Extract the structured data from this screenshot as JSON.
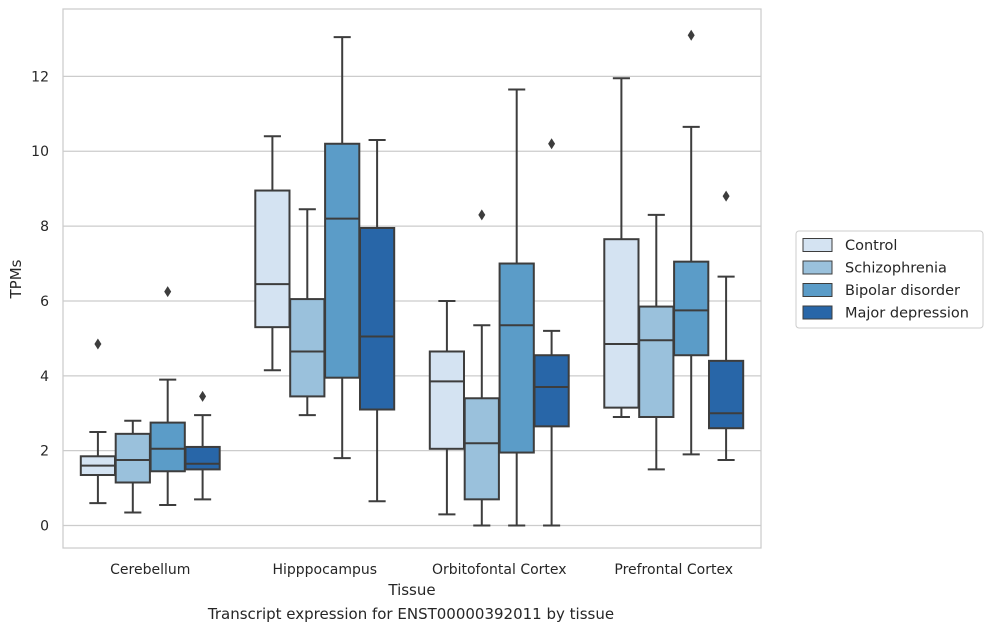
{
  "caption": "Transcript expression for ENST00000392011 by tissue",
  "chart_data": {
    "type": "box",
    "xlabel": "Tissue",
    "ylabel": "TPMs",
    "ylim": [
      -0.6,
      13.8
    ],
    "yticks": [
      0,
      2,
      4,
      6,
      8,
      10,
      12
    ],
    "grid": "horizontal",
    "legend_position": "right",
    "categories": [
      "Cerebellum",
      "Hipppocampus",
      "Orbitofontal Cortex",
      "Prefrontal Cortex"
    ],
    "series": [
      {
        "name": "Control",
        "color": "#d4e3f2",
        "boxes": [
          {
            "whisker_low": 0.6,
            "q1": 1.35,
            "median": 1.6,
            "q3": 1.85,
            "whisker_high": 2.5,
            "outliers": [
              4.85
            ]
          },
          {
            "whisker_low": 4.15,
            "q1": 5.3,
            "median": 6.45,
            "q3": 8.95,
            "whisker_high": 10.4,
            "outliers": []
          },
          {
            "whisker_low": 0.3,
            "q1": 2.05,
            "median": 3.85,
            "q3": 4.65,
            "whisker_high": 6.0,
            "outliers": []
          },
          {
            "whisker_low": 2.9,
            "q1": 3.15,
            "median": 4.85,
            "q3": 7.65,
            "whisker_high": 11.95,
            "outliers": []
          }
        ]
      },
      {
        "name": "Schizophrenia",
        "color": "#9ac1dc",
        "boxes": [
          {
            "whisker_low": 0.35,
            "q1": 1.15,
            "median": 1.75,
            "q3": 2.45,
            "whisker_high": 2.8,
            "outliers": []
          },
          {
            "whisker_low": 2.95,
            "q1": 3.45,
            "median": 4.65,
            "q3": 6.05,
            "whisker_high": 8.45,
            "outliers": []
          },
          {
            "whisker_low": 0.0,
            "q1": 0.7,
            "median": 2.2,
            "q3": 3.4,
            "whisker_high": 5.35,
            "outliers": [
              8.3
            ]
          },
          {
            "whisker_low": 1.5,
            "q1": 2.9,
            "median": 4.95,
            "q3": 5.85,
            "whisker_high": 8.3,
            "outliers": []
          }
        ]
      },
      {
        "name": "Bipolar disorder",
        "color": "#5b9cc8",
        "boxes": [
          {
            "whisker_low": 0.55,
            "q1": 1.45,
            "median": 2.05,
            "q3": 2.75,
            "whisker_high": 3.9,
            "outliers": [
              6.25
            ]
          },
          {
            "whisker_low": 1.8,
            "q1": 3.95,
            "median": 8.2,
            "q3": 10.2,
            "whisker_high": 13.05,
            "outliers": []
          },
          {
            "whisker_low": 0.0,
            "q1": 1.95,
            "median": 5.35,
            "q3": 7.0,
            "whisker_high": 11.65,
            "outliers": []
          },
          {
            "whisker_low": 1.9,
            "q1": 4.55,
            "median": 5.75,
            "q3": 7.05,
            "whisker_high": 10.65,
            "outliers": [
              13.1
            ]
          }
        ]
      },
      {
        "name": "Major depression",
        "color": "#2866a8",
        "boxes": [
          {
            "whisker_low": 0.7,
            "q1": 1.5,
            "median": 1.65,
            "q3": 2.1,
            "whisker_high": 2.95,
            "outliers": [
              3.45
            ]
          },
          {
            "whisker_low": 0.65,
            "q1": 3.1,
            "median": 5.05,
            "q3": 7.95,
            "whisker_high": 10.3,
            "outliers": []
          },
          {
            "whisker_low": 0.0,
            "q1": 2.65,
            "median": 3.7,
            "q3": 4.55,
            "whisker_high": 5.2,
            "outliers": [
              10.2
            ]
          },
          {
            "whisker_low": 1.75,
            "q1": 2.6,
            "median": 3.0,
            "q3": 4.4,
            "whisker_high": 6.65,
            "outliers": [
              8.8
            ]
          }
        ]
      }
    ]
  }
}
